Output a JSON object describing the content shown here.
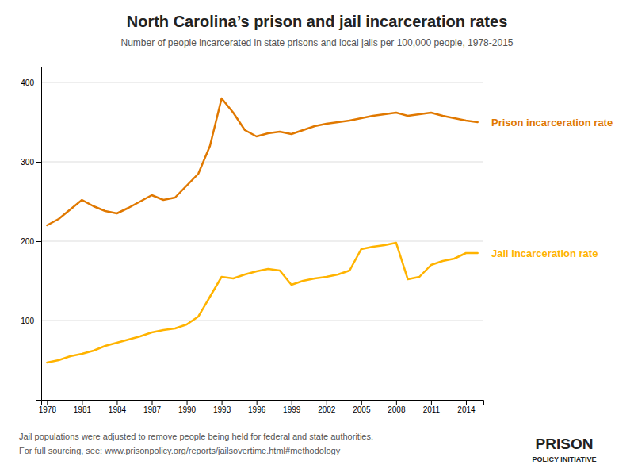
{
  "chart_data": {
    "type": "line",
    "title": "North Carolina’s prison and jail incarceration rates",
    "subtitle": "Number of people incarcerated in state prisons and local jails per 100,000 people, 1978-2015",
    "footnotes": [
      "Jail populations were adjusted to remove people being held for federal and state authorities.",
      "For full sourcing, see: www.prisonpolicy.org/reports/jailsovertime.html#methodology"
    ],
    "annotations": [
      "PRISON",
      "POLICY INITIATIVE"
    ],
    "x": [
      1978,
      1979,
      1980,
      1981,
      1982,
      1983,
      1984,
      1985,
      1986,
      1987,
      1988,
      1989,
      1990,
      1991,
      1992,
      1993,
      1994,
      1995,
      1996,
      1997,
      1998,
      1999,
      2000,
      2001,
      2002,
      2003,
      2004,
      2005,
      2006,
      2007,
      2008,
      2009,
      2010,
      2011,
      2012,
      2013,
      2014,
      2015
    ],
    "series": [
      {
        "name": "Prison incarceration rate",
        "color": "#e07800",
        "values": [
          220,
          228,
          240,
          252,
          244,
          238,
          235,
          242,
          250,
          258,
          252,
          255,
          270,
          285,
          320,
          380,
          362,
          340,
          332,
          336,
          338,
          335,
          340,
          345,
          348,
          350,
          352,
          355,
          358,
          360,
          362,
          358,
          360,
          362,
          358,
          355,
          352,
          350
        ]
      },
      {
        "name": "Jail incarceration rate",
        "color": "#ffb300",
        "values": [
          47,
          50,
          55,
          58,
          62,
          68,
          72,
          76,
          80,
          85,
          88,
          90,
          95,
          105,
          130,
          155,
          153,
          158,
          162,
          165,
          163,
          145,
          150,
          153,
          155,
          158,
          163,
          190,
          193,
          195,
          198,
          152,
          155,
          170,
          175,
          178,
          185,
          185
        ]
      }
    ],
    "xlim": [
      1977.5,
      2015.5
    ],
    "xticks": [
      1978,
      1981,
      1984,
      1987,
      1990,
      1993,
      1996,
      1999,
      2002,
      2005,
      2008,
      2011,
      2014
    ],
    "ylim": [
      0,
      420
    ],
    "yticks": [
      100,
      200,
      300,
      400
    ],
    "grid": true
  }
}
